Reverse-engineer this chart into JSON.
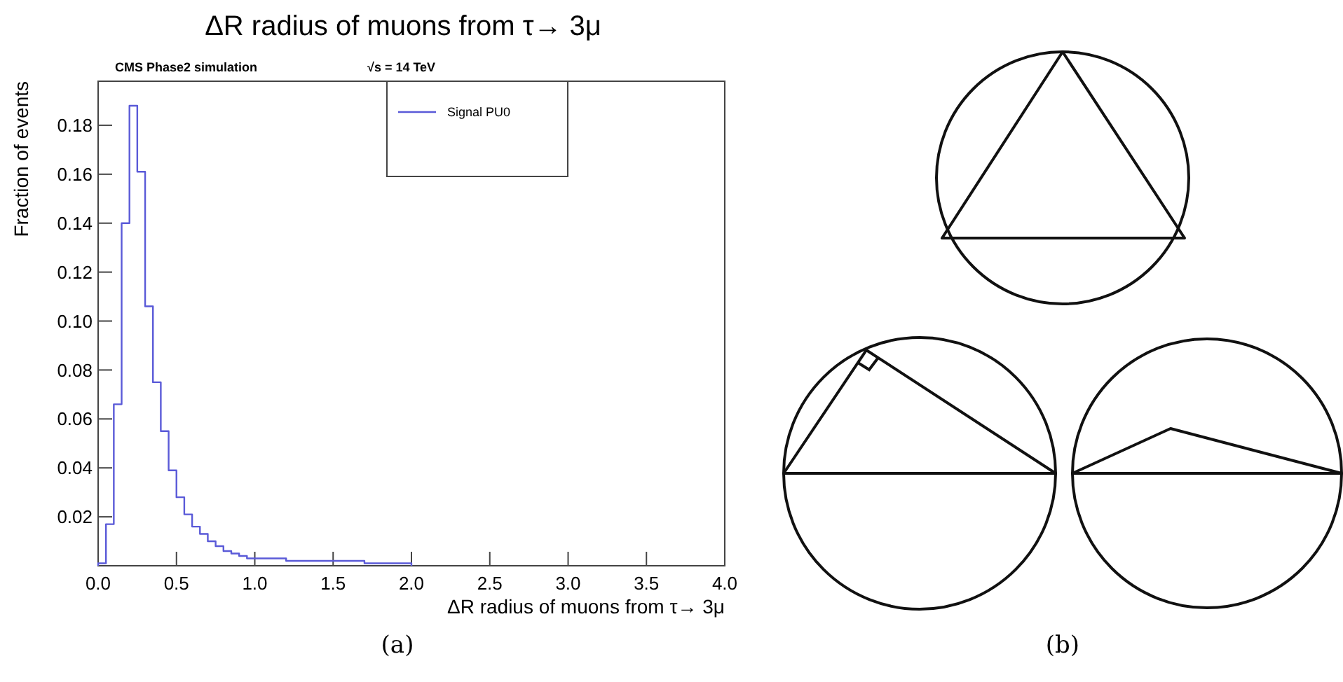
{
  "chart_data": {
    "type": "histogram",
    "title": "ΔR radius of muons from τ→ 3μ",
    "xlabel": "ΔR radius of muons from τ→ 3μ",
    "ylabel": "Fraction of events",
    "annotations": [
      "CMS Phase2 simulation",
      "√s = 14 TeV",
      "(a)",
      "(b)"
    ],
    "bins": [
      0,
      0.05,
      0.1,
      0.15,
      0.2,
      0.25,
      0.3,
      0.35,
      0.4,
      0.45,
      0.5,
      0.55,
      0.6,
      0.65,
      0.7,
      0.75,
      0.8,
      0.85,
      0.9,
      0.95,
      1.0,
      1.05,
      1.1,
      1.15,
      1.2,
      1.25,
      1.3,
      1.35,
      1.4,
      1.45,
      1.5,
      1.55,
      1.6,
      1.65,
      1.7,
      1.75,
      1.8,
      1.85,
      1.9,
      1.95,
      2.0
    ],
    "series": [
      {
        "name": "Signal PU0",
        "color": "#5a5ad8",
        "values": [
          0.001,
          0.017,
          0.066,
          0.14,
          0.188,
          0.161,
          0.106,
          0.075,
          0.055,
          0.039,
          0.028,
          0.021,
          0.016,
          0.013,
          0.01,
          0.008,
          0.006,
          0.005,
          0.004,
          0.003,
          0.003,
          0.003,
          0.003,
          0.003,
          0.002,
          0.002,
          0.002,
          0.002,
          0.002,
          0.002,
          0.002,
          0.002,
          0.002,
          0.002,
          0.001,
          0.001,
          0.001,
          0.001,
          0.001,
          0.001
        ]
      }
    ],
    "xlim": [
      0,
      4
    ],
    "xticks": [
      {
        "value": 0,
        "label": "0.0"
      },
      {
        "value": 0.5,
        "label": "0.5"
      },
      {
        "value": 1,
        "label": "1.0"
      },
      {
        "value": 1.5,
        "label": "1.5"
      },
      {
        "value": 2,
        "label": "2.0"
      },
      {
        "value": 2.5,
        "label": "2.5"
      },
      {
        "value": 3,
        "label": "3.0"
      },
      {
        "value": 3.5,
        "label": "3.5"
      },
      {
        "value": 4,
        "label": "4.0"
      }
    ],
    "ylim": [
      0,
      0.198
    ],
    "yticks": [
      0.02,
      0.04,
      0.06,
      0.08,
      {
        "value": 0.1,
        "label": "0.10"
      },
      0.12,
      0.14,
      0.16,
      0.18
    ],
    "legend": "top",
    "grid": false
  }
}
